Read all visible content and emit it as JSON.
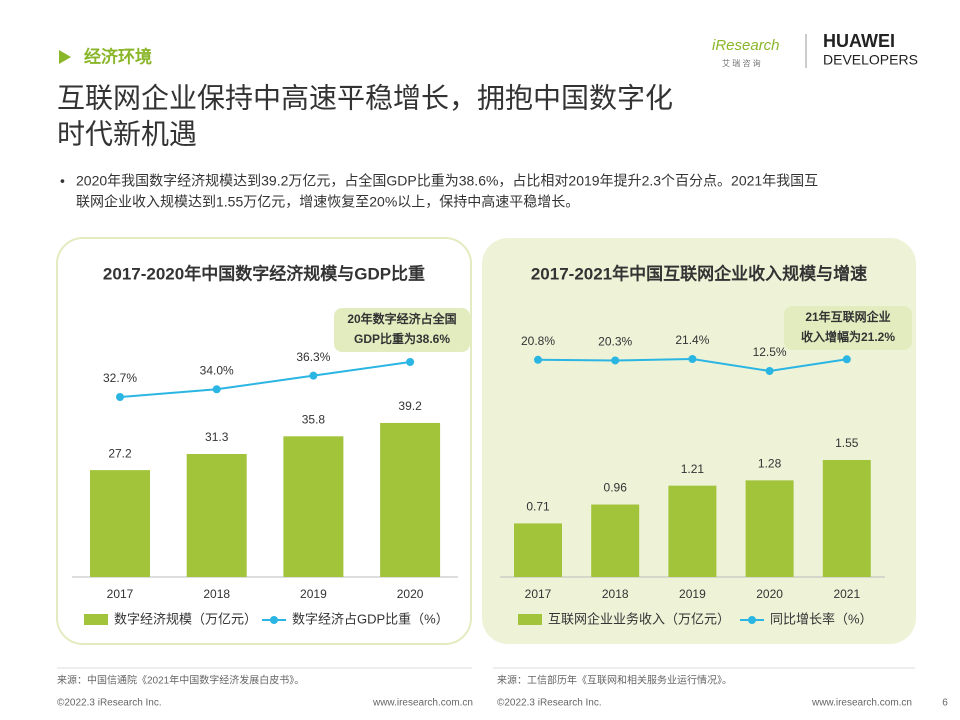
{
  "header": {
    "section": "经济环境",
    "title": [
      "互联网企业保持中高速平稳增长，拥抱中国数字化",
      "时代新机遇"
    ],
    "bullet": [
      "2020年我国数字经济规模达到39.2万亿元，占全国GDP比重为38.6%，占比相对2019年提升2.3个百分点。2021年我国互",
      "联网企业收入规模达到1.55万亿元，增速恢复至20%以上，保持中高速平稳增长。"
    ]
  },
  "logos": {
    "iresearch": "iResearch",
    "iresearch_cn": "艾 瑞 咨 询",
    "huawei": "HUAWEI",
    "developers": "DEVELOPERS"
  },
  "chart_data": [
    {
      "type": "bar",
      "title": "2017-2020年中国数字经济规模与GDP比重",
      "categories": [
        "2017",
        "2018",
        "2019",
        "2020"
      ],
      "series": [
        {
          "name": "数字经济规模（万亿元）",
          "type": "bar",
          "color": "#a2c43a",
          "values": [
            27.2,
            31.3,
            35.8,
            39.2
          ]
        },
        {
          "name": "数字经济占GDP比重（%）",
          "type": "line",
          "color": "#2bb5e3",
          "values": [
            32.7,
            34.0,
            36.3,
            38.6
          ],
          "value_labels": [
            "32.7%",
            "34.0%",
            "36.3%",
            null
          ]
        }
      ],
      "annotation": [
        "20年数字经济占全国",
        "GDP比重为38.6%"
      ],
      "source": "来源：中国信通院《2021年中国数字经济发展白皮书》。"
    },
    {
      "type": "bar",
      "title": "2017-2021年中国互联网企业收入规模与增速",
      "categories": [
        "2017",
        "2018",
        "2019",
        "2020",
        "2021"
      ],
      "series": [
        {
          "name": "互联网企业业务收入（万亿元）",
          "type": "bar",
          "color": "#a2c43a",
          "values": [
            0.71,
            0.96,
            1.21,
            1.28,
            1.55
          ]
        },
        {
          "name": "同比增长率（%）",
          "type": "line",
          "color": "#2bb5e3",
          "values": [
            20.8,
            20.3,
            21.4,
            12.5,
            21.2
          ],
          "value_labels": [
            "20.8%",
            "20.3%",
            "21.4%",
            "12.5%",
            null
          ]
        }
      ],
      "annotation": [
        "21年互联网企业",
        "收入增幅为21.2%"
      ],
      "source": "来源：工信部历年《互联网和相关服务业运行情况》。"
    }
  ],
  "footer": {
    "copyright": "©2022.3 iResearch Inc.",
    "url": "www.iresearch.com.cn",
    "page": "6"
  }
}
